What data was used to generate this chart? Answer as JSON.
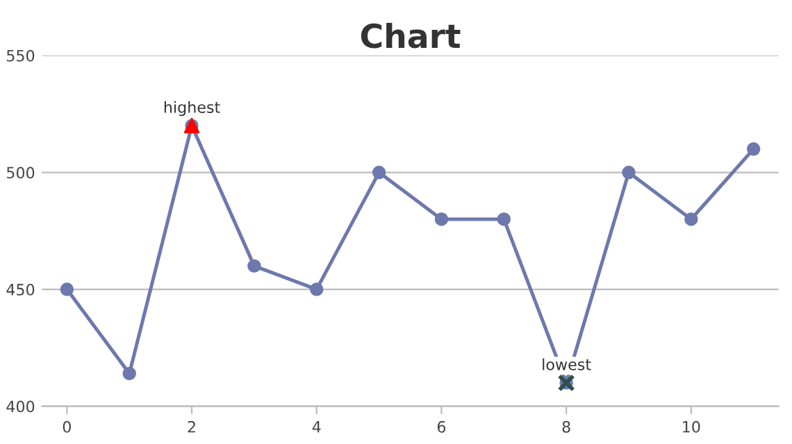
{
  "chart_data": {
    "type": "line",
    "title": "Chart",
    "grid": "y",
    "marker": "circle",
    "line_style": "solid",
    "xlim": [
      -0.4,
      11.4
    ],
    "xticks": [
      0,
      2,
      4,
      6,
      8,
      10
    ],
    "ylim": [
      400,
      550
    ],
    "yticks": [
      400,
      450,
      500,
      550
    ],
    "series": [
      {
        "color": "#6d78ad",
        "x": [
          0,
          1,
          2,
          3,
          4,
          5,
          6,
          7,
          8,
          9,
          10,
          11
        ],
        "values": [
          450,
          414,
          520,
          460,
          450,
          500,
          480,
          480,
          410,
          500,
          480,
          510
        ]
      },
      {
        "type": "scatter",
        "marker": "triangle",
        "color": "#ff0000",
        "x": [
          2
        ],
        "values": [
          520
        ]
      },
      {
        "type": "scatter",
        "marker": "cross",
        "color": "#2f4f4f",
        "x": [
          8
        ],
        "values": [
          410
        ]
      }
    ],
    "annotations": [
      {
        "text": "highest",
        "x": 2,
        "y": 520
      },
      {
        "text": "lowest",
        "x": 8,
        "y": 410
      }
    ]
  }
}
